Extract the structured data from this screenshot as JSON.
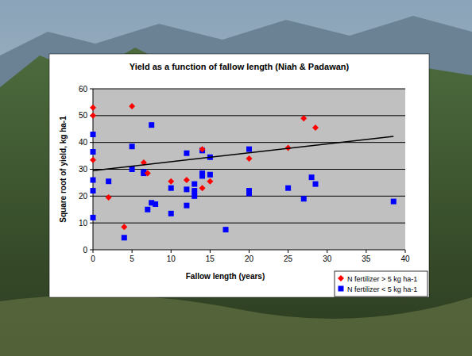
{
  "chart_data": {
    "type": "scatter",
    "title": "Yield as a function of fallow length (Niah & Padawan)",
    "x_label": "Fallow length (years)",
    "y_label": "Square root of yield, kg ha-1",
    "xlim": [
      0,
      40
    ],
    "ylim": [
      0,
      60
    ],
    "xticks": [
      0,
      5,
      10,
      15,
      20,
      25,
      30,
      35,
      40
    ],
    "yticks": [
      0,
      10,
      20,
      30,
      40,
      50,
      60
    ],
    "grid": true,
    "legend": "lower right",
    "series": [
      {
        "name": "N fertilizer > 5 kg ha-1",
        "color": "#ff0000",
        "marker": "diamond",
        "x": [
          0,
          0,
          0,
          2,
          4,
          5,
          6.5,
          7,
          10,
          12,
          14,
          14,
          15,
          20,
          25,
          27,
          28.5
        ],
        "values": [
          53,
          50,
          33.5,
          19.5,
          8.5,
          53.5,
          32.5,
          28.5,
          25.5,
          26,
          23,
          37.5,
          25.5,
          34,
          38,
          49,
          45.5
        ]
      },
      {
        "name": "N fertilizer < 5 kg ha-1",
        "color": "#0000ff",
        "marker": "square",
        "x": [
          0,
          0,
          0,
          0,
          0,
          2,
          4,
          5,
          5,
          6.5,
          6.5,
          7,
          7.5,
          7.5,
          8,
          10,
          10,
          12,
          12,
          12,
          13,
          13,
          13,
          14,
          14,
          14,
          15,
          15,
          17,
          20,
          20,
          20,
          25,
          27,
          28,
          28.5,
          38.5
        ],
        "values": [
          43,
          36.5,
          26,
          22,
          12,
          25.5,
          4.5,
          38.5,
          30,
          29,
          28.5,
          15,
          46.5,
          17.5,
          17,
          23,
          13.5,
          36,
          22.5,
          16.5,
          24.5,
          22,
          20,
          37,
          28.5,
          27.5,
          28,
          34.5,
          7.5,
          37.5,
          22,
          21,
          23,
          19,
          27,
          24.5,
          18
        ]
      }
    ],
    "trend_line": {
      "x": [
        0,
        38.5
      ],
      "values": [
        29.5,
        42.3
      ],
      "color": "#000000"
    }
  }
}
